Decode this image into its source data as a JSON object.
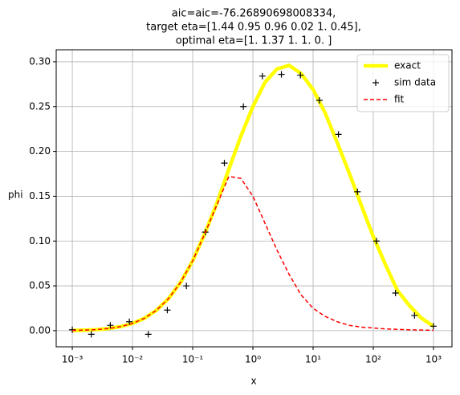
{
  "chart_data": {
    "type": "line",
    "title": [
      "aic=aic=-76.26890698008334,",
      "target eta=[1.44 0.95 0.96 0.02 1.   0.45],",
      "optimal eta=[1.   1.37 1.   1.   0.  ]"
    ],
    "x_label": "x",
    "y_label": "phi",
    "xscale": "log",
    "xlim": [
      0.00054,
      2028
    ],
    "xticks": [
      {
        "value": 0.001,
        "label": "10⁻³"
      },
      {
        "value": 0.01,
        "label": "10⁻²"
      },
      {
        "value": 0.1,
        "label": "10⁻¹"
      },
      {
        "value": 1,
        "label": "10⁰"
      },
      {
        "value": 10,
        "label": "10¹"
      },
      {
        "value": 100,
        "label": "10²"
      },
      {
        "value": 1000,
        "label": "10³"
      }
    ],
    "ylim": [
      -0.018,
      0.3134
    ],
    "yticks": [
      {
        "value": 0,
        "label": "0.00"
      },
      {
        "value": 0.05,
        "label": "0.05"
      },
      {
        "value": 0.1,
        "label": "0.10"
      },
      {
        "value": 0.15,
        "label": "0.15"
      },
      {
        "value": 0.2,
        "label": "0.20"
      },
      {
        "value": 0.25,
        "label": "0.25"
      },
      {
        "value": 0.3,
        "label": "0.30"
      }
    ],
    "grid": true,
    "legend": "upper right",
    "series": [
      {
        "name": "exact",
        "color": "#ffff00",
        "linestyle": "solid",
        "linewidth": 4.5,
        "marker": "none",
        "x": [
          0.001,
          0.00158,
          0.00251,
          0.00398,
          0.00631,
          0.01,
          0.0158,
          0.0251,
          0.0398,
          0.0631,
          0.1,
          0.158,
          0.251,
          0.398,
          0.631,
          1,
          1.585,
          2.512,
          3.981,
          6.31,
          10,
          15.85,
          25.12,
          39.81,
          63.1,
          100,
          158.5,
          251.2,
          398.1,
          631,
          1000
        ],
        "values": [
          0.0003,
          0.0006,
          0.0012,
          0.0024,
          0.0045,
          0.0081,
          0.0139,
          0.0229,
          0.0359,
          0.054,
          0.078,
          0.108,
          0.142,
          0.18,
          0.217,
          0.25,
          0.277,
          0.292,
          0.296,
          0.287,
          0.269,
          0.243,
          0.21,
          0.176,
          0.14,
          0.105,
          0.074,
          0.045,
          0.028,
          0.014,
          0.005
        ]
      },
      {
        "name": "sim data",
        "color": "#000000",
        "linestyle": "none",
        "linewidth": 1,
        "marker": "+",
        "x": [
          0.001,
          0.00207,
          0.00428,
          0.00886,
          0.0183,
          0.0379,
          0.0785,
          0.162,
          0.336,
          0.695,
          1.438,
          2.976,
          6.158,
          12.74,
          26.37,
          54.56,
          112.9,
          233.6,
          483.3,
          1000
        ],
        "values": [
          0.001,
          -0.004,
          0.006,
          0.01,
          -0.004,
          0.023,
          0.05,
          0.11,
          0.187,
          0.25,
          0.284,
          0.286,
          0.285,
          0.257,
          0.219,
          0.155,
          0.1,
          0.042,
          0.017,
          0.005
        ]
      },
      {
        "name": "fit",
        "color": "#ff0000",
        "linestyle": "dashed",
        "linewidth": 1.5,
        "marker": "none",
        "x": [
          0.001,
          0.00158,
          0.00251,
          0.00398,
          0.00631,
          0.01,
          0.0158,
          0.0251,
          0.0398,
          0.0631,
          0.1,
          0.158,
          0.251,
          0.398,
          0.631,
          1,
          1.585,
          2.512,
          3.981,
          6.31,
          10,
          15.85,
          25.12,
          39.81,
          63.1,
          100,
          158.5,
          251.2,
          398.1,
          631,
          1000
        ],
        "values": [
          0.0003,
          0.0006,
          0.0012,
          0.0024,
          0.0045,
          0.0081,
          0.0139,
          0.0229,
          0.0359,
          0.054,
          0.078,
          0.108,
          0.14,
          0.172,
          0.17,
          0.15,
          0.12,
          0.09,
          0.063,
          0.04,
          0.025,
          0.016,
          0.01,
          0.006,
          0.004,
          0.003,
          0.002,
          0.0015,
          0.001,
          0.0007,
          0.0005
        ]
      }
    ]
  }
}
